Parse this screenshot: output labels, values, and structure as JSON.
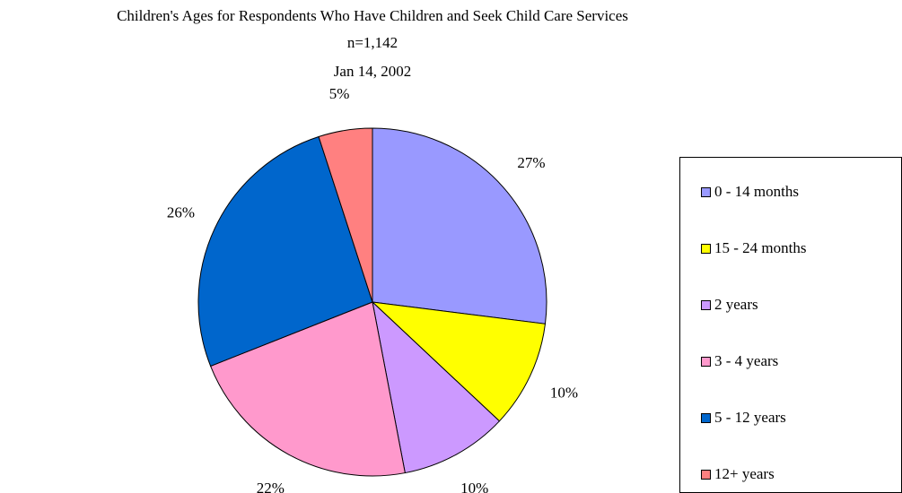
{
  "chart_data": {
    "type": "pie",
    "title": "Children's Ages for Respondents Who Have Children and Seek Child Care Services",
    "subtitle_n": "n=1,142",
    "subtitle_date": "Jan 14, 2002",
    "categories": [
      "0 - 14 months",
      "15 - 24 months",
      "2 years",
      "3 - 4 years",
      "5 - 12 years",
      "12+ years"
    ],
    "values": [
      27,
      10,
      10,
      22,
      26,
      5
    ],
    "value_labels": [
      "27%",
      "10%",
      "10%",
      "22%",
      "26%",
      "5%"
    ],
    "colors": [
      "#9999ff",
      "#ffff00",
      "#cc99ff",
      "#ff99cc",
      "#0066cc",
      "#ff8080"
    ],
    "legend_position": "right"
  }
}
